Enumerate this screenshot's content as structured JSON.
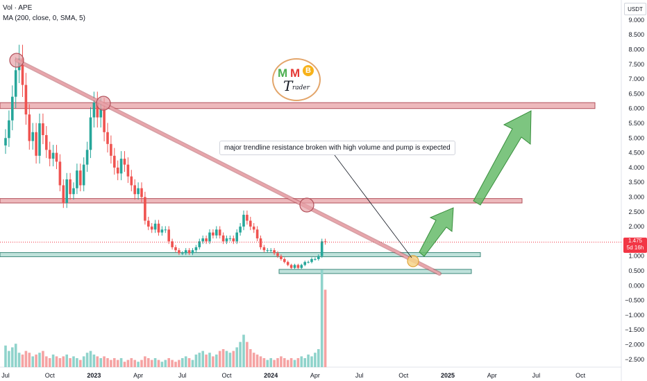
{
  "legend": {
    "vol_label": "Vol · APE",
    "ma_label": "MA (200, close, 0, SMA, 5)"
  },
  "unit": "USDT",
  "annotation": "major trendline resistance broken with high volume and pump is expected",
  "price_tag": {
    "price": "1.475",
    "countdown": "5d 16h"
  },
  "logo": {
    "m1": "M",
    "m2": "M",
    "b": "B",
    "t": "T",
    "rest": "rader"
  },
  "colors": {
    "up": "#26a69a",
    "down": "#ef5350",
    "vol_up": "#8fd3cb",
    "vol_down": "#f5a3a3",
    "zone_red_fill": "#e7a1a6",
    "zone_red_line": "#b2505a",
    "zone_green_fill": "#a9d8cf",
    "zone_green_line": "#3f8a7c",
    "arrow": "#66bb6a",
    "arrow_edge": "#388e3c",
    "price_line": "#f23645"
  },
  "chart_data": {
    "type": "candlestick",
    "y_axis": {
      "ticks": [
        "9.000",
        "8.500",
        "8.000",
        "7.500",
        "7.000",
        "6.500",
        "6.000",
        "5.500",
        "5.000",
        "4.500",
        "4.000",
        "3.500",
        "3.000",
        "2.500",
        "2.000",
        "1.500",
        "1.000",
        "0.500",
        "0.000",
        "−0.500",
        "−1.000",
        "−1.500",
        "−2.000",
        "−2.500"
      ],
      "tick_values": [
        9.0,
        8.5,
        8.0,
        7.5,
        7.0,
        6.5,
        6.0,
        5.5,
        5.0,
        4.5,
        4.0,
        3.5,
        3.0,
        2.5,
        2.0,
        1.5,
        1.0,
        0.5,
        0.0,
        -0.5,
        -1.0,
        -1.5,
        -2.0,
        -2.5
      ]
    },
    "x_axis": {
      "ticks": [
        {
          "label": "Jul",
          "bold": false,
          "week": 0
        },
        {
          "label": "Oct",
          "bold": false,
          "week": 13
        },
        {
          "label": "2023",
          "bold": true,
          "week": 26
        },
        {
          "label": "Apr",
          "bold": false,
          "week": 39
        },
        {
          "label": "Jul",
          "bold": false,
          "week": 52
        },
        {
          "label": "Oct",
          "bold": false,
          "week": 65
        },
        {
          "label": "2024",
          "bold": true,
          "week": 78
        },
        {
          "label": "Apr",
          "bold": false,
          "week": 91
        },
        {
          "label": "Jul",
          "bold": false,
          "week": 104
        },
        {
          "label": "Oct",
          "bold": false,
          "week": 117
        },
        {
          "label": "2025",
          "bold": true,
          "week": 130
        },
        {
          "label": "Apr",
          "bold": false,
          "week": 143
        },
        {
          "label": "Jul",
          "bold": false,
          "week": 156
        },
        {
          "label": "Oct",
          "bold": false,
          "week": 169
        }
      ]
    },
    "last_price": 1.475,
    "closes": [
      5.0,
      5.6,
      6.4,
      7.3,
      7.7,
      6.8,
      5.8,
      4.9,
      5.2,
      4.4,
      5.5,
      5.1,
      4.6,
      4.3,
      4.5,
      4.2,
      3.4,
      2.8,
      3.6,
      3.1,
      3.3,
      3.9,
      3.4,
      4.1,
      4.6,
      5.7,
      6.2,
      5.7,
      6.0,
      5.2,
      4.8,
      4.4,
      4.0,
      3.8,
      4.3,
      4.1,
      3.7,
      3.4,
      3.1,
      3.3,
      3.0,
      2.2,
      2.0,
      1.9,
      2.1,
      1.8,
      1.9,
      1.9,
      1.5,
      1.3,
      1.2,
      1.1,
      1.1,
      1.2,
      1.1,
      1.2,
      1.3,
      1.5,
      1.6,
      1.5,
      1.8,
      1.7,
      1.9,
      1.7,
      1.5,
      1.6,
      1.6,
      1.5,
      1.8,
      2.0,
      2.4,
      2.2,
      2.0,
      1.9,
      1.6,
      1.3,
      1.2,
      1.2,
      1.2,
      1.1,
      1.0,
      0.9,
      0.8,
      0.7,
      0.6,
      0.7,
      0.6,
      0.7,
      0.8,
      0.8,
      0.9,
      0.9,
      1.0,
      1.5,
      1.475
    ],
    "volumes": [
      1.2,
      0.9,
      1.1,
      1.3,
      0.8,
      0.7,
      0.9,
      0.8,
      0.6,
      0.7,
      0.8,
      0.9,
      0.6,
      0.5,
      0.7,
      0.6,
      0.5,
      0.6,
      0.7,
      0.5,
      0.6,
      0.5,
      0.4,
      0.6,
      0.8,
      0.9,
      0.7,
      0.6,
      0.5,
      0.6,
      0.5,
      0.4,
      0.5,
      0.4,
      0.5,
      0.3,
      0.4,
      0.5,
      0.4,
      0.3,
      0.4,
      0.6,
      0.5,
      0.4,
      0.5,
      0.4,
      0.3,
      0.4,
      0.5,
      0.4,
      0.3,
      0.4,
      0.5,
      0.6,
      0.5,
      0.4,
      0.7,
      0.8,
      0.9,
      0.7,
      0.8,
      0.6,
      0.7,
      0.9,
      1.0,
      0.9,
      0.8,
      0.9,
      1.1,
      1.4,
      1.8,
      1.4,
      1.0,
      0.8,
      0.7,
      0.6,
      0.5,
      0.4,
      0.5,
      0.4,
      0.5,
      0.6,
      0.5,
      0.4,
      0.5,
      0.4,
      0.5,
      0.6,
      0.5,
      0.7,
      0.6,
      0.8,
      1.0,
      5.4,
      4.3
    ],
    "price_scale_note": "Candles plotted on price axis; volume plotted as histogram at bottom",
    "zones": [
      {
        "name": "resistance-zone-top",
        "from": 6.0,
        "to": 6.2
      },
      {
        "name": "resistance-zone-mid",
        "from": 2.8,
        "to": 2.95
      },
      {
        "name": "support-zone",
        "from": 0.98,
        "to": 1.12
      },
      {
        "name": "support-zone-low",
        "from": 0.45,
        "to": 0.55
      }
    ],
    "trendline": {
      "from": {
        "week": 3,
        "price": 7.7
      },
      "to": {
        "week": 127,
        "price": 0.45
      }
    }
  }
}
